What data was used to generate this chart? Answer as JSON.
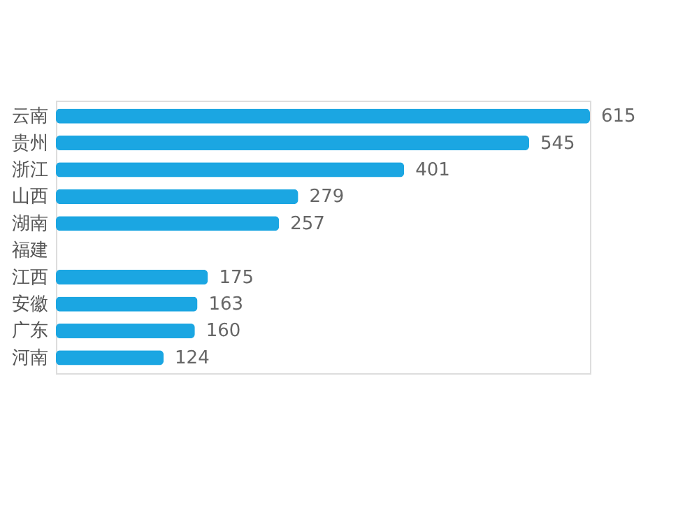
{
  "chart_data": {
    "type": "bar",
    "orientation": "horizontal",
    "categories": [
      "云南",
      "贵州",
      "浙江",
      "山西",
      "湖南",
      "福建",
      "江西",
      "安徽",
      "广东",
      "河南"
    ],
    "values": [
      615,
      545,
      401,
      279,
      257,
      null,
      175,
      163,
      160,
      124
    ],
    "color": "#1ba6e2",
    "data_labels": true,
    "grid": false
  }
}
